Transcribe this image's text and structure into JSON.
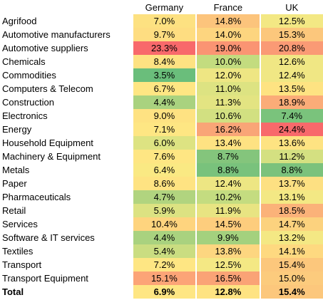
{
  "chart_data": {
    "type": "heatmap",
    "columns": [
      "Germany",
      "France",
      "UK"
    ],
    "rows": [
      {
        "label": "Agrifood",
        "values": [
          "7.0%",
          "14.8%",
          "12.5%"
        ],
        "colors": [
          "#fde181",
          "#fcc47c",
          "#f3e884"
        ]
      },
      {
        "label": "Automotive manufacturers",
        "values": [
          "9.7%",
          "14.0%",
          "15.3%"
        ],
        "colors": [
          "#fedd81",
          "#fdd57f",
          "#fcc77c"
        ]
      },
      {
        "label": "Automotive suppliers",
        "values": [
          "23.3%",
          "19.0%",
          "20.8%"
        ],
        "colors": [
          "#f8696b",
          "#fa9473",
          "#fa9a75"
        ]
      },
      {
        "label": "Chemicals",
        "values": [
          "8.4%",
          "10.0%",
          "12.6%"
        ],
        "colors": [
          "#fee282",
          "#c3dc7f",
          "#f0e784"
        ]
      },
      {
        "label": "Commodities",
        "values": [
          "3.5%",
          "12.0%",
          "12.4%"
        ],
        "colors": [
          "#6abe7b",
          "#eee683",
          "#f0e784"
        ]
      },
      {
        "label": "Computers & Telecom",
        "values": [
          "6.7%",
          "11.0%",
          "13.5%"
        ],
        "colors": [
          "#fee683",
          "#dde382",
          "#fee382"
        ]
      },
      {
        "label": "Construction",
        "values": [
          "4.4%",
          "11.3%",
          "18.9%"
        ],
        "colors": [
          "#a9d27f",
          "#e3e482",
          "#fbac78"
        ]
      },
      {
        "label": "Electronics",
        "values": [
          "9.0%",
          "10.6%",
          "7.4%"
        ],
        "colors": [
          "#fee282",
          "#d2e081",
          "#7ac37c"
        ]
      },
      {
        "label": "Energy",
        "values": [
          "7.1%",
          "16.2%",
          "24.4%"
        ],
        "colors": [
          "#fee683",
          "#f9a577",
          "#f8696b"
        ]
      },
      {
        "label": "Household Equipment",
        "values": [
          "6.0%",
          "13.4%",
          "13.6%"
        ],
        "colors": [
          "#dde382",
          "#fee282",
          "#fee382"
        ]
      },
      {
        "label": "Machinery & Equipment",
        "values": [
          "7.6%",
          "8.7%",
          "11.2%"
        ],
        "colors": [
          "#fee683",
          "#84c57c",
          "#d4e081"
        ]
      },
      {
        "label": "Metals",
        "values": [
          "6.4%",
          "8.8%",
          "8.8%"
        ],
        "colors": [
          "#fae983",
          "#79c27c",
          "#7bc27c"
        ]
      },
      {
        "label": "Paper",
        "values": [
          "8.6%",
          "12.4%",
          "13.7%"
        ],
        "colors": [
          "#fee382",
          "#ede683",
          "#fde082"
        ]
      },
      {
        "label": "Pharmaceuticals",
        "values": [
          "4.7%",
          "10.2%",
          "13.1%"
        ],
        "colors": [
          "#b1d47f",
          "#c4dc80",
          "#f3e884"
        ]
      },
      {
        "label": "Retail",
        "values": [
          "5.9%",
          "11.9%",
          "18.5%"
        ],
        "colors": [
          "#dce282",
          "#e8e482",
          "#fbb279"
        ]
      },
      {
        "label": "Services",
        "values": [
          "10.4%",
          "14.5%",
          "14.7%"
        ],
        "colors": [
          "#fed47e",
          "#fdcd7d",
          "#fcd27e"
        ]
      },
      {
        "label": "Software & IT services",
        "values": [
          "4.4%",
          "9.9%",
          "13.2%"
        ],
        "colors": [
          "#a9d27f",
          "#a4d17e",
          "#f4e884"
        ]
      },
      {
        "label": "Textiles",
        "values": [
          "5.4%",
          "13.8%",
          "14.1%"
        ],
        "colors": [
          "#cadd81",
          "#fdd680",
          "#fed980"
        ]
      },
      {
        "label": "Transport",
        "values": [
          "7.2%",
          "12.5%",
          "15.4%"
        ],
        "colors": [
          "#fee683",
          "#f4e884",
          "#fcc77c"
        ]
      },
      {
        "label": "Transport Equipment",
        "values": [
          "15.1%",
          "16.5%",
          "15.0%"
        ],
        "colors": [
          "#fca477",
          "#faa376",
          "#fccb7d"
        ]
      }
    ],
    "total": {
      "label": "Total",
      "values": [
        "6.9%",
        "12.8%",
        "15.4%"
      ],
      "colors": [
        "#fee683",
        "#fee382",
        "#fcc77c"
      ]
    }
  }
}
